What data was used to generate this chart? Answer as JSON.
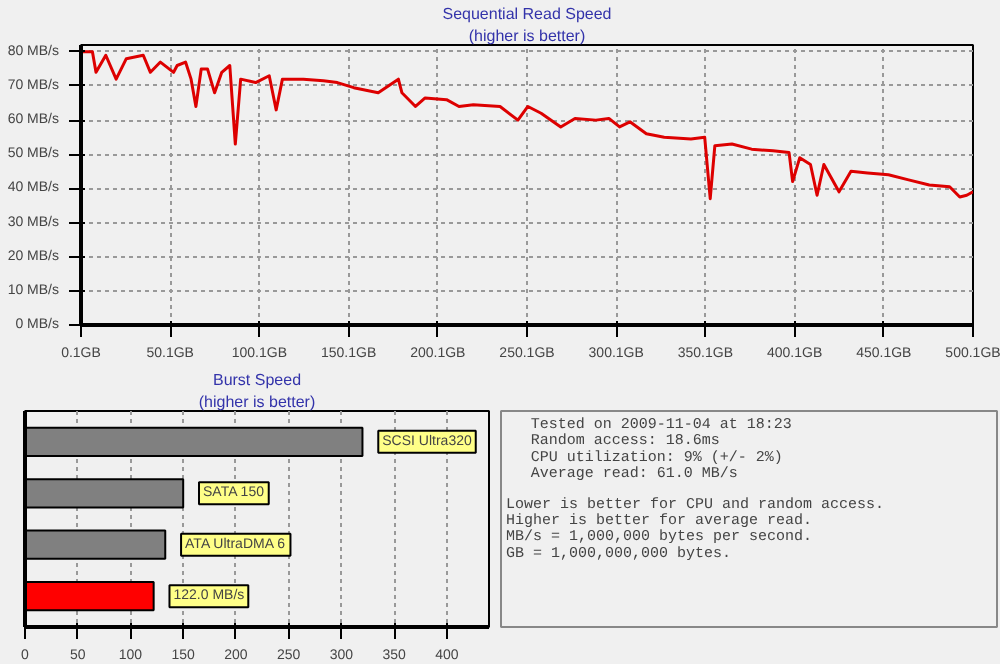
{
  "chart_data": [
    {
      "type": "line",
      "title": "Sequential Read Speed",
      "subtitle": "(higher is better)",
      "grid": true,
      "line_style": "solid",
      "xlim": [
        0.1,
        500.1
      ],
      "ylim": [
        0,
        82
      ],
      "xticks": [
        {
          "value": 0.1,
          "label": "0.1GB"
        },
        {
          "value": 50.1,
          "label": "50.1GB"
        },
        {
          "value": 100.1,
          "label": "100.1GB"
        },
        {
          "value": 150.1,
          "label": "150.1GB"
        },
        {
          "value": 200.1,
          "label": "200.1GB"
        },
        {
          "value": 250.1,
          "label": "250.1GB"
        },
        {
          "value": 300.1,
          "label": "300.1GB"
        },
        {
          "value": 350.1,
          "label": "350.1GB"
        },
        {
          "value": 400.1,
          "label": "400.1GB"
        },
        {
          "value": 450.1,
          "label": "450.1GB"
        },
        {
          "value": 500.1,
          "label": "500.1GB"
        }
      ],
      "yticks": [
        {
          "value": 0,
          "label": "0 MB/s"
        },
        {
          "value": 10,
          "label": "10 MB/s"
        },
        {
          "value": 20,
          "label": "20 MB/s"
        },
        {
          "value": 30,
          "label": "30 MB/s"
        },
        {
          "value": 40,
          "label": "40 MB/s"
        },
        {
          "value": 50,
          "label": "50 MB/s"
        },
        {
          "value": 60,
          "label": "60 MB/s"
        },
        {
          "value": 70,
          "label": "70 MB/s"
        },
        {
          "value": 80,
          "label": "80 MB/s"
        }
      ],
      "series": [
        {
          "color": "#dd0000",
          "x": [
            0.1,
            6.5,
            8.5,
            14,
            19.8,
            25.5,
            35,
            39,
            44.6,
            52,
            54,
            58.7,
            61.8,
            64.5,
            67.5,
            71,
            75,
            79,
            83.5,
            86.6,
            89.6,
            98,
            105.6,
            109.5,
            113,
            124.7,
            136,
            143.8,
            153,
            166.7,
            178,
            180,
            187.6,
            193,
            205,
            212,
            220,
            235,
            245,
            250.6,
            258,
            269,
            277,
            288.7,
            296,
            302,
            307.8,
            317,
            327,
            342,
            349.7,
            352.8,
            355.4,
            365,
            376,
            388,
            397,
            399,
            403,
            409,
            412.7,
            416.5,
            425,
            431.7,
            441,
            452.7,
            464,
            475.6,
            487,
            492.7,
            496.6,
            500.1
          ],
          "values": [
            80,
            80,
            74,
            79,
            72,
            78,
            79,
            74,
            77,
            74,
            76,
            77,
            72,
            64,
            75,
            75,
            68,
            74,
            76,
            53,
            72,
            71,
            73,
            63,
            72,
            72,
            71.5,
            71,
            69.5,
            68,
            72,
            68,
            64,
            66.5,
            66,
            64,
            64.5,
            64,
            60,
            64,
            62,
            58,
            60.5,
            60,
            60.5,
            58,
            59.5,
            56,
            55,
            54.5,
            55,
            37,
            52.5,
            53,
            51.5,
            51,
            50.5,
            42,
            49,
            47,
            38,
            47,
            39,
            45,
            44.5,
            44,
            42.5,
            41,
            40.5,
            37.5,
            38,
            39
          ]
        }
      ]
    },
    {
      "type": "bar",
      "orientation": "horizontal",
      "title": "Burst Speed",
      "subtitle": "(higher is better)",
      "grid": "x",
      "tick_labels": "x",
      "categories": [
        "SCSI Ultra320",
        "SATA 150",
        "ATA UltraDMA 6",
        null
      ],
      "values": [
        320,
        150,
        133,
        122.0
      ],
      "colors": [
        "#808080",
        "#808080",
        "#808080",
        "#ff0000"
      ],
      "value_labels": [
        null,
        null,
        null,
        "122.0 MB/s"
      ],
      "xlim": [
        0,
        440
      ],
      "xticks": [
        0,
        50,
        100,
        150,
        200,
        250,
        300,
        350,
        400
      ]
    },
    {
      "type": "other",
      "annotations": [
        "Tested on 2009-11-04 at 18:23",
        "Random access: 18.6ms",
        "CPU utilization: 9% (+/- 2%)",
        "Average read: 61.0 MB/s",
        "Lower is better for CPU and random access.",
        "Higher is better for average read.",
        "MB/s = 1,000,000 bytes per second.",
        "GB = 1,000,000,000 bytes."
      ]
    }
  ]
}
